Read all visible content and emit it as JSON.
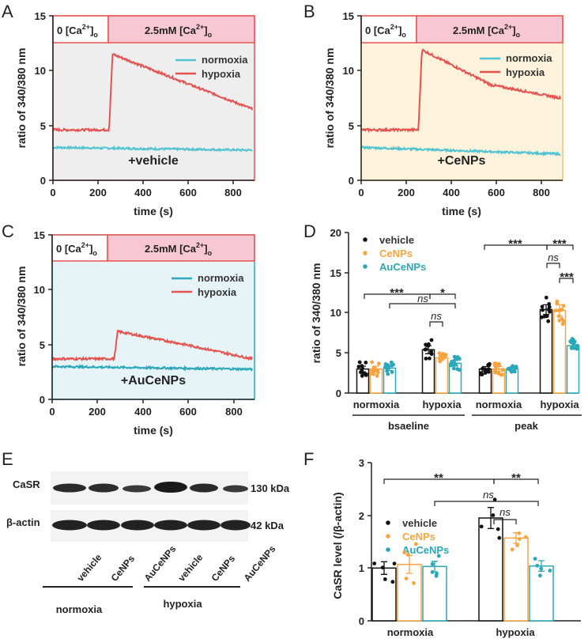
{
  "colors": {
    "normoxia": "#4fc3d0",
    "hypoxia": "#e5524f",
    "vehicle": "#111111",
    "CeNPs": "#f7a440",
    "AuCeNPs": "#2aa7b8",
    "banner": "#f7c7d4",
    "banner_border": "#e5524f",
    "bgA": "#eeeeee",
    "bgB": "#fdf3dc",
    "bgC": "#e6f4f7"
  },
  "panels": [
    {
      "letter": "A",
      "treatment": "+vehicle",
      "normoxia_level": 3.0,
      "normoxia_end": 2.75,
      "hyp_base": 4.6,
      "hyp_rise": 245,
      "hyp_peak": 11.5,
      "hyp_end": 6.5,
      "hyp_mid": 9.0
    },
    {
      "letter": "B",
      "treatment": "+CeNPs",
      "normoxia_level": 3.0,
      "normoxia_end": 2.4,
      "hyp_base": 4.6,
      "hyp_rise": 250,
      "hyp_peak": 11.9,
      "hyp_end": 7.5,
      "hyp_mid": 8.7
    },
    {
      "letter": "C",
      "treatment": "+AuCeNPs",
      "normoxia_level": 3.0,
      "normoxia_end": 2.75,
      "hyp_base": 3.7,
      "hyp_rise": 270,
      "hyp_peak": 6.2,
      "hyp_end": 3.7,
      "hyp_mid": 5.0
    }
  ],
  "traces": {
    "banner_left": "0 [Ca",
    "banner_right": "2.5mM [Ca",
    "sup": "2+",
    "sub": "o",
    "legend": [
      "normoxia",
      "hypoxia"
    ],
    "xlabel": "time (s)",
    "ylabel": "ratio of 340/380 nm",
    "xticks": [
      "0",
      "200",
      "400",
      "600",
      "800"
    ],
    "yticks": [
      "0",
      "5",
      "10",
      "15"
    ]
  },
  "chart_data": [
    {
      "type": "line",
      "panel": "A",
      "title": "+vehicle",
      "xlabel": "time (s)",
      "ylabel": "ratio of 340/380 nm",
      "xlim": [
        0,
        880
      ],
      "ylim": [
        0,
        15
      ],
      "series": [
        {
          "name": "normoxia",
          "x": [
            0,
            250,
            880
          ],
          "y": [
            3.0,
            2.9,
            2.75
          ]
        },
        {
          "name": "hypoxia",
          "x": [
            0,
            240,
            245,
            260,
            400,
            600,
            870
          ],
          "y": [
            4.6,
            4.6,
            11.0,
            11.5,
            10.0,
            8.5,
            6.5
          ]
        }
      ]
    },
    {
      "type": "line",
      "panel": "B",
      "title": "+CeNPs",
      "xlabel": "time (s)",
      "ylabel": "ratio of 340/380 nm",
      "xlim": [
        0,
        880
      ],
      "ylim": [
        0,
        15
      ],
      "series": [
        {
          "name": "normoxia",
          "x": [
            0,
            250,
            880
          ],
          "y": [
            3.0,
            2.8,
            2.4
          ]
        },
        {
          "name": "hypoxia",
          "x": [
            0,
            240,
            250,
            265,
            400,
            600,
            870
          ],
          "y": [
            4.6,
            4.6,
            11.0,
            11.9,
            9.0,
            8.2,
            7.5
          ]
        }
      ]
    },
    {
      "type": "line",
      "panel": "C",
      "title": "+AuCeNPs",
      "xlabel": "time (s)",
      "ylabel": "ratio of 340/380 nm",
      "xlim": [
        0,
        880
      ],
      "ylim": [
        0,
        15
      ],
      "series": [
        {
          "name": "normoxia",
          "x": [
            0,
            250,
            880
          ],
          "y": [
            3.0,
            2.9,
            2.75
          ]
        },
        {
          "name": "hypoxia",
          "x": [
            0,
            260,
            280,
            320,
            600,
            870
          ],
          "y": [
            3.7,
            3.8,
            5.6,
            6.2,
            4.5,
            3.7
          ]
        }
      ]
    },
    {
      "type": "bar",
      "panel": "D",
      "ylabel": "ratio of 340/380 nm",
      "ylim": [
        0,
        20
      ],
      "groups": [
        "normoxia",
        "hypoxia",
        "normoxia",
        "hypoxia"
      ],
      "supergroups": [
        "bsaeline",
        "peak"
      ],
      "series": [
        {
          "name": "vehicle",
          "values": [
            3.0,
            5.4,
            3.0,
            10.4
          ],
          "errors": [
            0.35,
            0.5,
            0.3,
            0.6
          ]
        },
        {
          "name": "CeNPs",
          "values": [
            3.0,
            4.4,
            3.0,
            10.3
          ],
          "errors": [
            0.35,
            0.25,
            0.3,
            0.7
          ]
        },
        {
          "name": "AuCeNPs",
          "values": [
            3.1,
            3.7,
            3.0,
            5.9
          ],
          "errors": [
            0.3,
            0.35,
            0.2,
            0.35
          ]
        }
      ],
      "annotations": [
        "***",
        "*",
        "ns",
        "ns",
        "***",
        "***",
        "ns",
        "***"
      ]
    },
    {
      "type": "bar",
      "panel": "F",
      "ylabel": "CaSR level (/β-actin)",
      "ylim": [
        0,
        3
      ],
      "categories": [
        "normoxia",
        "hypoxia"
      ],
      "series": [
        {
          "name": "vehicle",
          "values": [
            1.0,
            1.95
          ],
          "errors": [
            0.12,
            0.2
          ]
        },
        {
          "name": "CeNPs",
          "values": [
            1.07,
            1.57
          ],
          "errors": [
            0.17,
            0.1
          ]
        },
        {
          "name": "AuCeNPs",
          "values": [
            1.03,
            1.04
          ],
          "errors": [
            0.1,
            0.1
          ]
        }
      ],
      "annotations": [
        "**",
        "**",
        "ns",
        "ns"
      ]
    }
  ],
  "panelD": {
    "letter": "D",
    "legend": [
      "vehicle",
      "CeNPs",
      "AuCeNPs"
    ],
    "groups": [
      "normoxia",
      "hypoxia",
      "normoxia",
      "hypoxia"
    ],
    "supergroups": [
      "bsaeline",
      "peak"
    ],
    "yticks": [
      "0",
      "5",
      "10",
      "15",
      "20"
    ],
    "sig": [
      "***",
      "*",
      "***",
      "***",
      "***"
    ],
    "ns": "ns"
  },
  "panelE": {
    "letter": "E",
    "band1": "CaSR",
    "band1_kda": "130 kDa",
    "band2": "β-actin",
    "band2_kda": "42 kDa",
    "lanes": [
      "vehicle",
      "CeNPs",
      "AuCeNPs",
      "vehicle",
      "CeNPs",
      "AuCeNPs"
    ],
    "groups": [
      "normoxia",
      "hypoxia"
    ]
  },
  "panelF": {
    "letter": "F",
    "legend": [
      "vehicle",
      "CeNPs",
      "AuCeNPs"
    ],
    "groups": [
      "normoxia",
      "hypoxia"
    ],
    "yticks": [
      "0",
      "1",
      "2",
      "3"
    ],
    "sig": [
      "**",
      "**"
    ],
    "ns": "ns"
  }
}
